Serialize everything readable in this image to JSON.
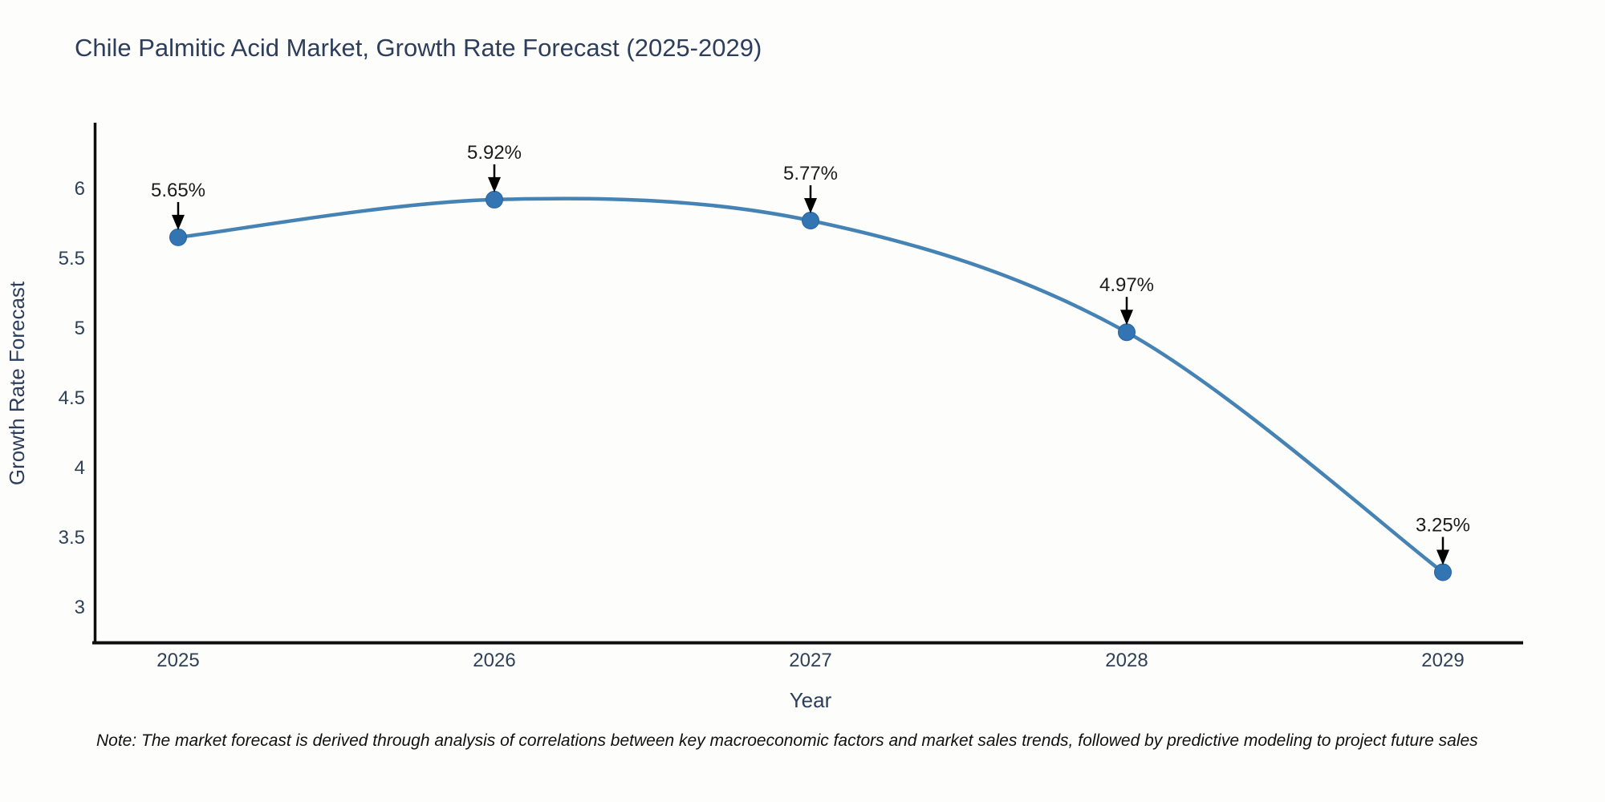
{
  "page": {
    "background_color": "#fdfdfb"
  },
  "chart_data": {
    "type": "line",
    "title": "Chile Palmitic Acid Market, Growth Rate Forecast (2025-2029)",
    "xlabel": "Year",
    "ylabel": "Growth Rate Forecast",
    "x": [
      2025,
      2026,
      2027,
      2028,
      2029
    ],
    "y": [
      5.65,
      5.92,
      5.77,
      4.97,
      3.25
    ],
    "point_labels": [
      "5.65%",
      "5.92%",
      "5.77%",
      "4.97%",
      "3.25%"
    ],
    "x_ticks": [
      "2025",
      "2026",
      "2027",
      "2028",
      "2029"
    ],
    "y_ticks": [
      3,
      3.5,
      4,
      4.5,
      5,
      5.5,
      6
    ],
    "ylim": [
      2.75,
      6.46
    ],
    "grid": false,
    "legend": "none",
    "line_color": "#4583b5",
    "marker_color": "#3374b3",
    "marker_edge_color": "#2a62a0",
    "axis_color": "#0e0e0e",
    "annotation_arrow_color": "#000000",
    "text_color": "#2c3e5c"
  },
  "note": {
    "text": "Note: The market forecast is derived through analysis of correlations between key macroeconomic factors and market sales trends, followed by predictive modeling to project future sales"
  }
}
